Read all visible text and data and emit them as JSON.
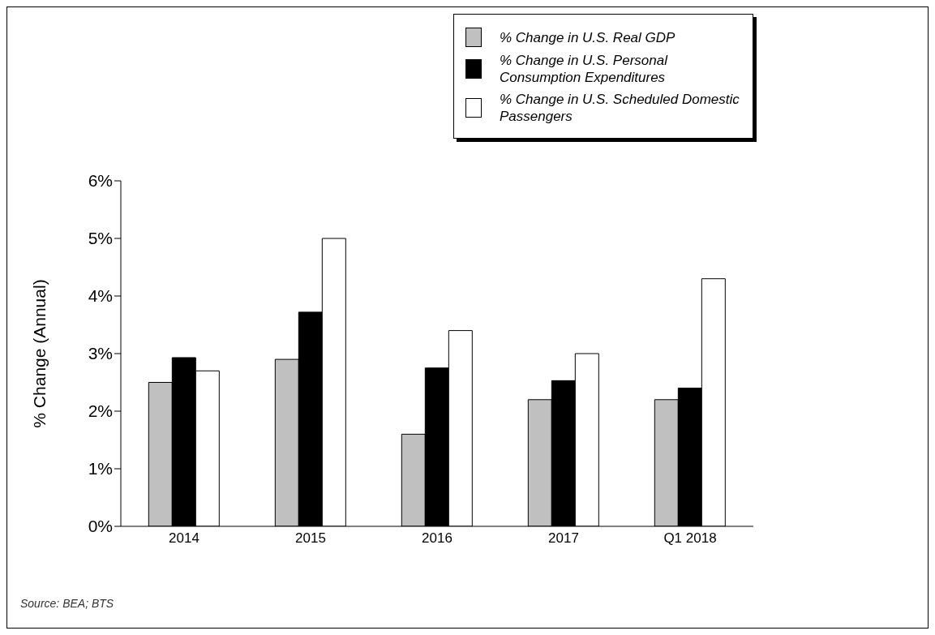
{
  "chart_data": {
    "type": "bar",
    "ylabel": "% Change (Annual)",
    "categories": [
      "2014",
      "2015",
      "2016",
      "2017",
      "Q1 2018"
    ],
    "series": [
      {
        "name": "% Change in U.S. Real GDP",
        "color": "#c0c0c0",
        "values": [
          2.5,
          2.9,
          1.6,
          2.2,
          2.2
        ]
      },
      {
        "name": "% Change in U.S. Personal Consumption Expenditures",
        "color": "#000000",
        "values": [
          2.93,
          3.72,
          2.75,
          2.53,
          2.4
        ]
      },
      {
        "name": "% Change in U.S. Scheduled Domestic Passengers",
        "color": "#ffffff",
        "values": [
          2.7,
          5.0,
          3.4,
          3.0,
          4.3
        ]
      }
    ],
    "ylim": [
      0,
      6
    ],
    "yticks": [
      {
        "value": 0,
        "label": "0%"
      },
      {
        "value": 1,
        "label": "1%"
      },
      {
        "value": 2,
        "label": "2%"
      },
      {
        "value": 3,
        "label": "3%"
      },
      {
        "value": 4,
        "label": "4%"
      },
      {
        "value": 5,
        "label": "5%"
      },
      {
        "value": 6,
        "label": "6%"
      }
    ],
    "grid": false,
    "legend": "top right",
    "annotations": [
      "Source: BEA; BTS"
    ]
  }
}
